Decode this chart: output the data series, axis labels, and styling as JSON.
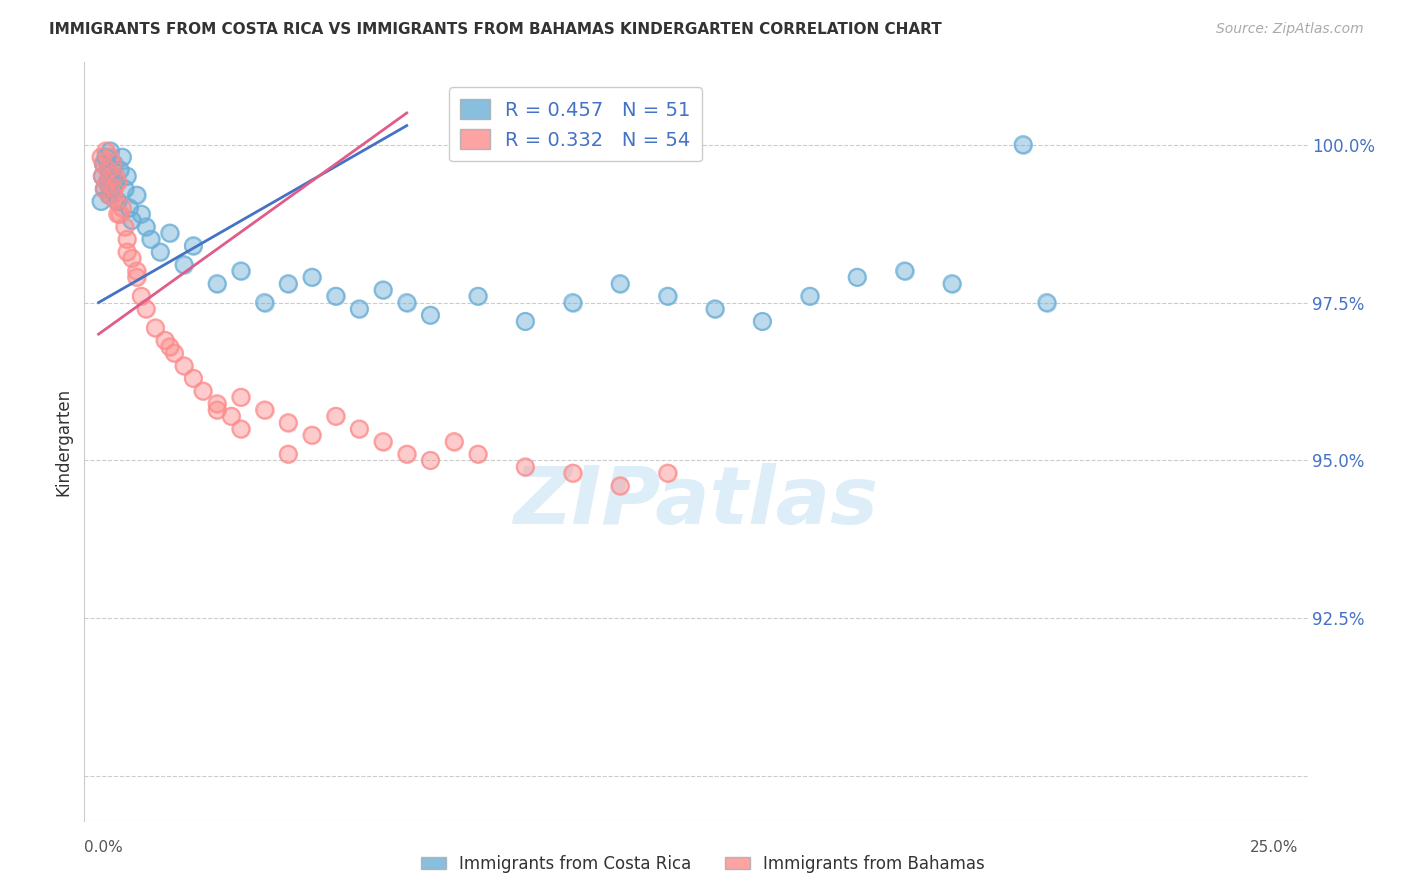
{
  "title": "IMMIGRANTS FROM COSTA RICA VS IMMIGRANTS FROM BAHAMAS KINDERGARTEN CORRELATION CHART",
  "source": "Source: ZipAtlas.com",
  "ylabel": "Kindergarten",
  "y_ticks": [
    90.0,
    92.5,
    95.0,
    97.5,
    100.0
  ],
  "y_tick_labels": [
    "",
    "92.5%",
    "95.0%",
    "97.5%",
    "100.0%"
  ],
  "xlim": [
    0.0,
    25.0
  ],
  "ylim": [
    89.5,
    101.2
  ],
  "blue_R": 0.457,
  "blue_N": 51,
  "pink_R": 0.332,
  "pink_N": 54,
  "blue_color": "#6baed6",
  "pink_color": "#fc8d8d",
  "blue_line_color": "#4472c4",
  "pink_line_color": "#e05c8a",
  "legend_label_blue": "Immigrants from Costa Rica",
  "legend_label_pink": "Immigrants from Bahamas",
  "watermark_text": "ZIPatlas",
  "blue_x": [
    0.05,
    0.08,
    0.1,
    0.12,
    0.15,
    0.18,
    0.2,
    0.22,
    0.25,
    0.28,
    0.3,
    0.32,
    0.35,
    0.4,
    0.45,
    0.5,
    0.55,
    0.6,
    0.65,
    0.7,
    0.8,
    0.9,
    1.0,
    1.1,
    1.3,
    1.5,
    1.8,
    2.0,
    2.5,
    3.0,
    3.5,
    4.0,
    4.5,
    5.0,
    5.5,
    6.0,
    6.5,
    7.0,
    8.0,
    9.0,
    10.0,
    11.0,
    12.0,
    13.0,
    14.0,
    15.0,
    16.0,
    17.0,
    18.0,
    20.0,
    19.5
  ],
  "blue_y": [
    99.1,
    99.5,
    99.7,
    99.3,
    99.8,
    99.4,
    99.6,
    99.2,
    99.9,
    99.5,
    99.3,
    99.7,
    99.4,
    99.1,
    99.6,
    99.8,
    99.3,
    99.5,
    99.0,
    98.8,
    99.2,
    98.9,
    98.7,
    98.5,
    98.3,
    98.6,
    98.1,
    98.4,
    97.8,
    98.0,
    97.5,
    97.8,
    97.9,
    97.6,
    97.4,
    97.7,
    97.5,
    97.3,
    97.6,
    97.2,
    97.5,
    97.8,
    97.6,
    97.4,
    97.2,
    97.6,
    97.9,
    98.0,
    97.8,
    97.5,
    100.0
  ],
  "pink_x": [
    0.05,
    0.08,
    0.1,
    0.12,
    0.15,
    0.18,
    0.2,
    0.22,
    0.25,
    0.28,
    0.3,
    0.32,
    0.35,
    0.38,
    0.4,
    0.45,
    0.5,
    0.55,
    0.6,
    0.7,
    0.8,
    0.9,
    1.0,
    1.2,
    1.4,
    1.6,
    1.8,
    2.0,
    2.2,
    2.5,
    2.8,
    3.0,
    3.5,
    4.0,
    4.5,
    5.0,
    5.5,
    6.0,
    6.5,
    7.0,
    7.5,
    8.0,
    9.0,
    10.0,
    11.0,
    12.0,
    3.0,
    4.0,
    1.5,
    2.5,
    0.6,
    0.4,
    0.8,
    0.3
  ],
  "pink_y": [
    99.8,
    99.5,
    99.7,
    99.3,
    99.9,
    99.4,
    99.6,
    99.2,
    99.8,
    99.5,
    99.7,
    99.3,
    99.5,
    99.1,
    99.4,
    98.9,
    99.0,
    98.7,
    98.5,
    98.2,
    97.9,
    97.6,
    97.4,
    97.1,
    96.9,
    96.7,
    96.5,
    96.3,
    96.1,
    95.9,
    95.7,
    96.0,
    95.8,
    95.6,
    95.4,
    95.7,
    95.5,
    95.3,
    95.1,
    95.0,
    95.3,
    95.1,
    94.9,
    94.8,
    94.6,
    94.8,
    95.5,
    95.1,
    96.8,
    95.8,
    98.3,
    98.9,
    98.0,
    99.2
  ],
  "blue_trendline_x": [
    0.0,
    6.5
  ],
  "blue_trendline_y": [
    97.5,
    100.3
  ],
  "pink_trendline_x": [
    0.0,
    6.5
  ],
  "pink_trendline_y": [
    97.0,
    100.5
  ]
}
